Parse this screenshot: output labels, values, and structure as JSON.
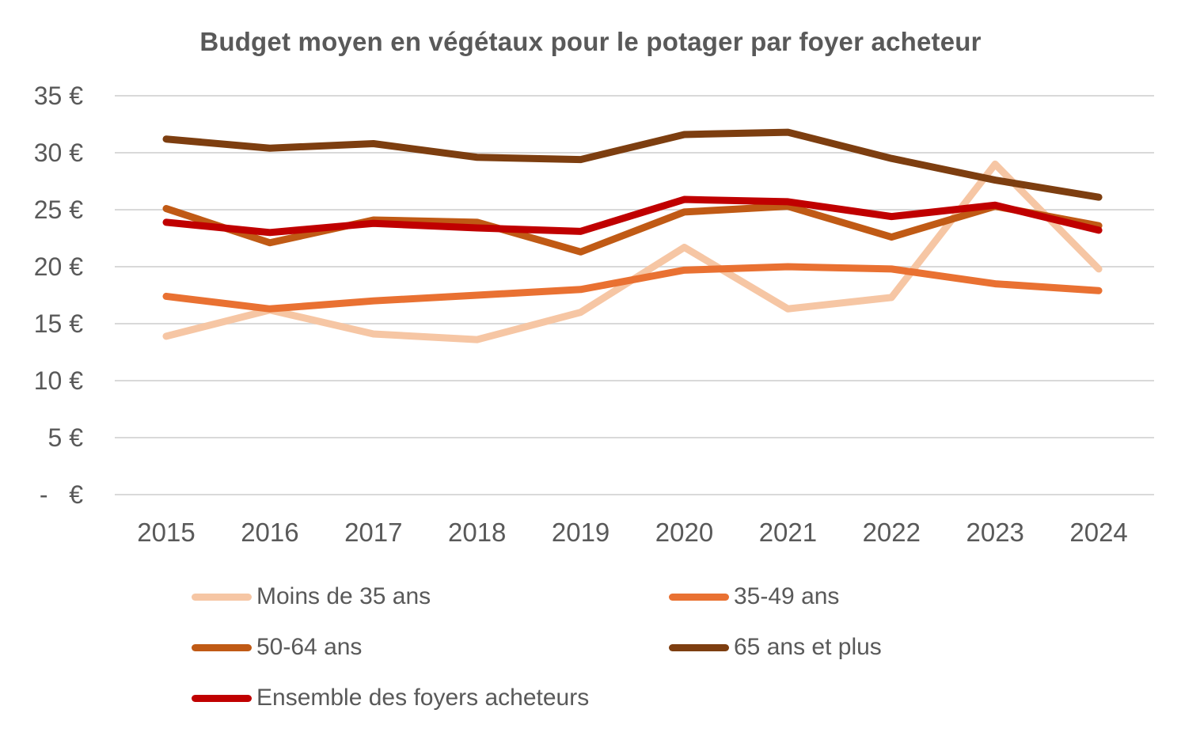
{
  "title": "Budget moyen en végétaux pour le potager par foyer acheteur",
  "colors": {
    "text_gray": "#595959",
    "gridline": "#D9D9D9",
    "background": "#FFFFFF"
  },
  "chart_data": {
    "type": "line",
    "title": "Budget moyen en végétaux pour le potager par foyer acheteur",
    "categories": [
      "2015",
      "2016",
      "2017",
      "2018",
      "2019",
      "2020",
      "2021",
      "2022",
      "2023",
      "2024"
    ],
    "series": [
      {
        "name": "Moins de 35 ans",
        "color": "#F6C6A4",
        "values": [
          13.9,
          16.2,
          14.1,
          13.6,
          16.0,
          21.7,
          16.3,
          17.3,
          29.0,
          19.8
        ]
      },
      {
        "name": "35-49 ans",
        "color": "#E97132",
        "values": [
          17.4,
          16.3,
          17.0,
          17.5,
          18.0,
          19.7,
          20.0,
          19.8,
          18.5,
          17.9
        ]
      },
      {
        "name": "50-64 ans",
        "color": "#C05A15",
        "values": [
          25.1,
          22.1,
          24.1,
          23.9,
          21.3,
          24.8,
          25.3,
          22.6,
          25.3,
          23.6
        ]
      },
      {
        "name": "65 ans et plus",
        "color": "#7D3E10",
        "values": [
          31.2,
          30.4,
          30.8,
          29.6,
          29.4,
          31.6,
          31.8,
          29.5,
          27.6,
          26.1
        ]
      },
      {
        "name": "Ensemble des foyers acheteurs",
        "color": "#C00000",
        "values": [
          23.9,
          23.0,
          23.8,
          23.4,
          23.1,
          25.9,
          25.7,
          24.4,
          25.4,
          23.2
        ]
      }
    ],
    "y_ticks": [
      {
        "value": 35,
        "label": "35 €"
      },
      {
        "value": 30,
        "label": "30 €"
      },
      {
        "value": 25,
        "label": "25 €"
      },
      {
        "value": 20,
        "label": "20 €"
      },
      {
        "value": 15,
        "label": "15 €"
      },
      {
        "value": 10,
        "label": "10 €"
      },
      {
        "value": 5,
        "label": "5 €"
      },
      {
        "value": 0,
        "label": "-   €"
      }
    ],
    "ylim": [
      0,
      35
    ],
    "grid": true,
    "legend_position": "bottom"
  }
}
